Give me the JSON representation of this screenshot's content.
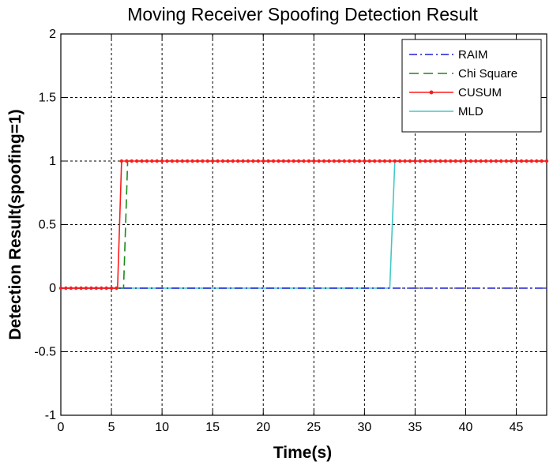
{
  "chart_data": {
    "type": "line",
    "title": "Moving Receiver Spoofing Detection Result",
    "xlabel": "Time(s)",
    "ylabel": "Detection Result(spoofing=1)",
    "xlim": [
      0,
      48
    ],
    "ylim": [
      -1,
      2
    ],
    "xticks": [
      0,
      5,
      10,
      15,
      20,
      25,
      30,
      35,
      40,
      45
    ],
    "yticks": [
      -1,
      -0.5,
      0,
      0.5,
      1,
      1.5,
      2
    ],
    "ytick_labels": [
      "-1",
      "-0.5",
      "0",
      "0.5",
      "1",
      "1.5",
      "2"
    ],
    "grid": true,
    "legend_position": "top-right",
    "series": [
      {
        "name": "RAIM",
        "color": "#1f1fd6",
        "style": "dashdot",
        "x": [
          0,
          32.7,
          33.0,
          48
        ],
        "y": [
          0,
          0,
          0,
          0
        ]
      },
      {
        "name": "Chi Square",
        "color": "#1a8a1a",
        "style": "dashed",
        "x": [
          0,
          6.2,
          6.6,
          48
        ],
        "y": [
          0,
          0,
          1,
          1
        ]
      },
      {
        "name": "CUSUM",
        "color": "#ff1a1a",
        "style": "solid-marker",
        "x": [
          0,
          5.6,
          6.0,
          48
        ],
        "y": [
          0,
          0,
          1,
          1
        ]
      },
      {
        "name": "MLD",
        "color": "#40c8c8",
        "style": "solid",
        "x": [
          0,
          32.5,
          33.0,
          48
        ],
        "y": [
          0,
          0,
          1,
          1
        ]
      }
    ]
  }
}
